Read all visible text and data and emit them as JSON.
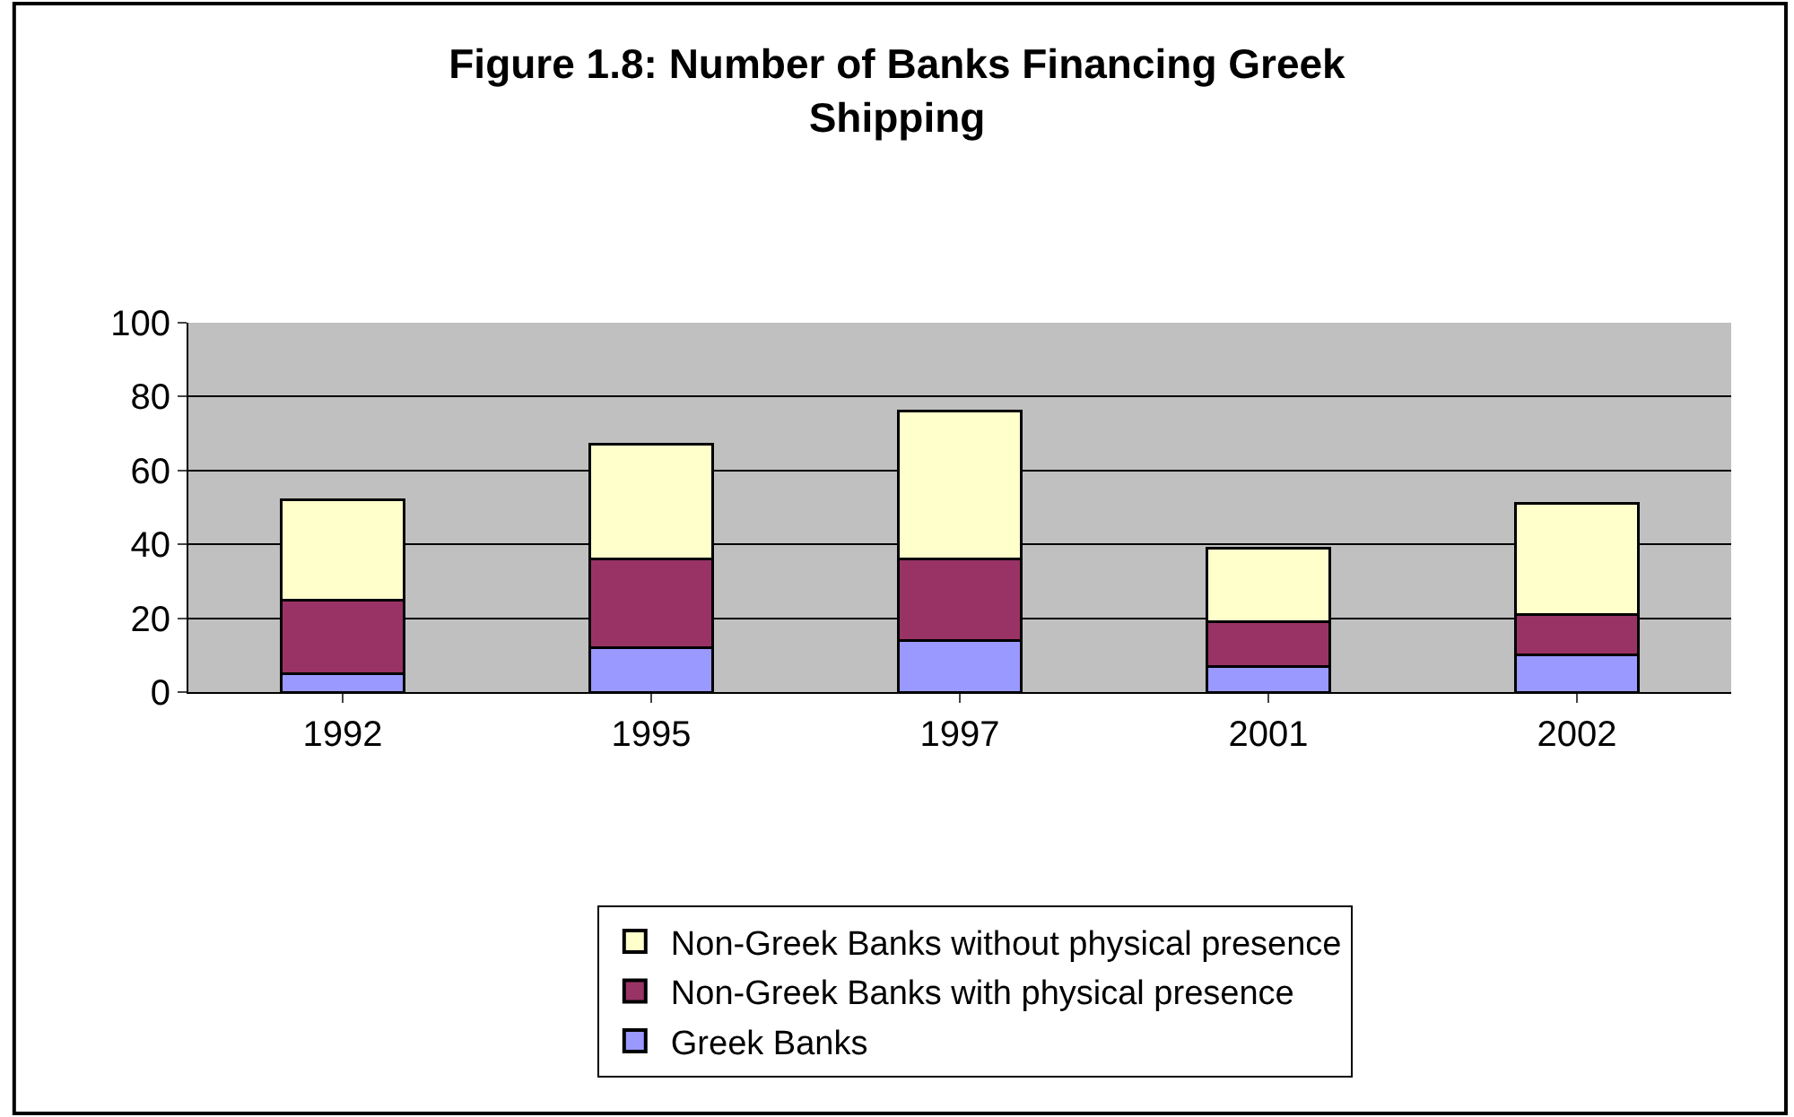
{
  "chart_data": {
    "type": "bar",
    "title": "Figure 1.8: Number of Banks Financing Greek Shipping",
    "categories": [
      "1992",
      "1995",
      "1997",
      "2001",
      "2002"
    ],
    "stacked": true,
    "series": [
      {
        "name": "Greek Banks",
        "color": "#9999ff",
        "values": [
          5,
          12,
          14,
          7,
          10
        ]
      },
      {
        "name": "Non-Greek Banks with physical presence",
        "color": "#993366",
        "values": [
          20,
          24,
          22,
          12,
          11
        ]
      },
      {
        "name": "Non-Greek Banks without physical presence",
        "color": "#ffffcc",
        "values": [
          27,
          31,
          40,
          20,
          30
        ]
      }
    ],
    "ylim": [
      0,
      100
    ],
    "yticks": [
      0,
      20,
      40,
      60,
      80,
      100
    ],
    "grid": "y",
    "legend": "bottom"
  }
}
